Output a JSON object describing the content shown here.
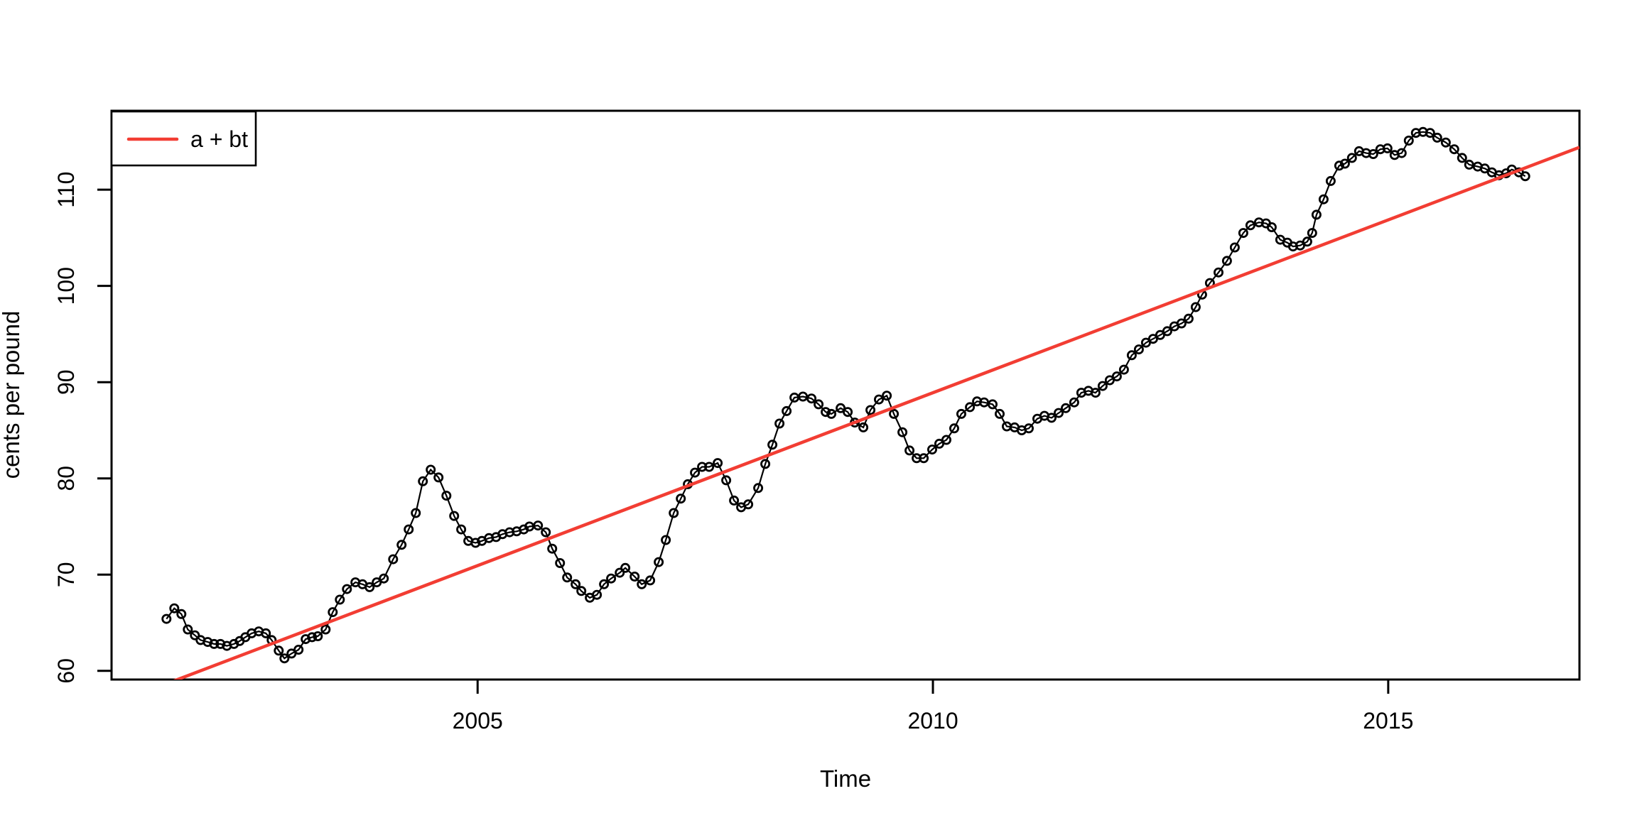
{
  "figure": {
    "background": "#ffffff",
    "frame_color": "#000000"
  },
  "chart_data": {
    "type": "line",
    "title": "",
    "xlabel": "Time",
    "ylabel": "cents per pound",
    "xlim": [
      2000.98,
      2017.1
    ],
    "ylim": [
      59.1,
      118.2
    ],
    "xticks": [
      2005,
      2010,
      2015
    ],
    "yticks": [
      60,
      70,
      80,
      90,
      100,
      110
    ],
    "grid": false,
    "legend": {
      "position": "topleft",
      "entries": [
        {
          "label": "a + bt",
          "color": "#f23d33"
        }
      ]
    },
    "trend": {
      "label": "a + bt",
      "slope": 3.592,
      "intercept": -7131.02,
      "color": "#f23d33"
    },
    "series": [
      {
        "name": "cents per pound",
        "color": "#000000",
        "marker": "open-circle",
        "points": [
          [
            2001.583,
            65.4
          ],
          [
            2001.669,
            66.5
          ],
          [
            2001.747,
            65.9
          ],
          [
            2001.817,
            64.3
          ],
          [
            2001.895,
            63.7
          ],
          [
            2001.958,
            63.2
          ],
          [
            2002.036,
            63.0
          ],
          [
            2002.106,
            62.8
          ],
          [
            2002.176,
            62.8
          ],
          [
            2002.246,
            62.6
          ],
          [
            2002.324,
            62.8
          ],
          [
            2002.387,
            63.1
          ],
          [
            2002.449,
            63.5
          ],
          [
            2002.519,
            63.9
          ],
          [
            2002.597,
            64.1
          ],
          [
            2002.675,
            63.9
          ],
          [
            2002.738,
            63.2
          ],
          [
            2002.816,
            62.1
          ],
          [
            2002.878,
            61.3
          ],
          [
            2002.956,
            61.8
          ],
          [
            2003.034,
            62.2
          ],
          [
            2003.112,
            63.3
          ],
          [
            2003.182,
            63.5
          ],
          [
            2003.245,
            63.6
          ],
          [
            2003.331,
            64.3
          ],
          [
            2003.409,
            66.1
          ],
          [
            2003.487,
            67.4
          ],
          [
            2003.565,
            68.5
          ],
          [
            2003.658,
            69.2
          ],
          [
            2003.736,
            69.0
          ],
          [
            2003.814,
            68.7
          ],
          [
            2003.892,
            69.2
          ],
          [
            2003.97,
            69.6
          ],
          [
            2004.072,
            71.6
          ],
          [
            2004.165,
            73.1
          ],
          [
            2004.243,
            74.7
          ],
          [
            2004.321,
            76.4
          ],
          [
            2004.399,
            79.7
          ],
          [
            2004.485,
            80.9
          ],
          [
            2004.571,
            80.1
          ],
          [
            2004.657,
            78.2
          ],
          [
            2004.742,
            76.1
          ],
          [
            2004.82,
            74.7
          ],
          [
            2004.898,
            73.5
          ],
          [
            2004.977,
            73.3
          ],
          [
            2005.047,
            73.5
          ],
          [
            2005.125,
            73.8
          ],
          [
            2005.203,
            73.9
          ],
          [
            2005.273,
            74.2
          ],
          [
            2005.351,
            74.4
          ],
          [
            2005.429,
            74.5
          ],
          [
            2005.507,
            74.7
          ],
          [
            2005.569,
            75.0
          ],
          [
            2005.663,
            75.1
          ],
          [
            2005.749,
            74.4
          ],
          [
            2005.819,
            72.7
          ],
          [
            2005.905,
            71.2
          ],
          [
            2005.983,
            69.7
          ],
          [
            2006.076,
            69.0
          ],
          [
            2006.139,
            68.3
          ],
          [
            2006.232,
            67.6
          ],
          [
            2006.31,
            67.9
          ],
          [
            2006.388,
            69.0
          ],
          [
            2006.466,
            69.6
          ],
          [
            2006.56,
            70.2
          ],
          [
            2006.622,
            70.7
          ],
          [
            2006.724,
            69.8
          ],
          [
            2006.802,
            69.0
          ],
          [
            2006.895,
            69.4
          ],
          [
            2006.989,
            71.3
          ],
          [
            2007.067,
            73.6
          ],
          [
            2007.153,
            76.4
          ],
          [
            2007.231,
            77.9
          ],
          [
            2007.309,
            79.4
          ],
          [
            2007.387,
            80.6
          ],
          [
            2007.465,
            81.2
          ],
          [
            2007.543,
            81.2
          ],
          [
            2007.636,
            81.6
          ],
          [
            2007.73,
            79.8
          ],
          [
            2007.816,
            77.7
          ],
          [
            2007.894,
            77.0
          ],
          [
            2007.972,
            77.3
          ],
          [
            2008.081,
            79.0
          ],
          [
            2008.159,
            81.5
          ],
          [
            2008.237,
            83.5
          ],
          [
            2008.315,
            85.7
          ],
          [
            2008.393,
            87.0
          ],
          [
            2008.479,
            88.4
          ],
          [
            2008.573,
            88.5
          ],
          [
            2008.666,
            88.3
          ],
          [
            2008.744,
            87.7
          ],
          [
            2008.822,
            86.9
          ],
          [
            2008.885,
            86.7
          ],
          [
            2008.986,
            87.3
          ],
          [
            2009.064,
            86.9
          ],
          [
            2009.142,
            85.8
          ],
          [
            2009.236,
            85.3
          ],
          [
            2009.314,
            87.1
          ],
          [
            2009.407,
            88.2
          ],
          [
            2009.493,
            88.6
          ],
          [
            2009.571,
            86.7
          ],
          [
            2009.665,
            84.8
          ],
          [
            2009.743,
            82.9
          ],
          [
            2009.821,
            82.1
          ],
          [
            2009.899,
            82.1
          ],
          [
            2009.992,
            83.0
          ],
          [
            2010.07,
            83.6
          ],
          [
            2010.148,
            84.0
          ],
          [
            2010.234,
            85.2
          ],
          [
            2010.312,
            86.7
          ],
          [
            2010.406,
            87.4
          ],
          [
            2010.484,
            88.0
          ],
          [
            2010.562,
            87.9
          ],
          [
            2010.655,
            87.7
          ],
          [
            2010.733,
            86.7
          ],
          [
            2010.811,
            85.4
          ],
          [
            2010.897,
            85.3
          ],
          [
            2010.975,
            85.0
          ],
          [
            2011.053,
            85.2
          ],
          [
            2011.147,
            86.2
          ],
          [
            2011.225,
            86.5
          ],
          [
            2011.303,
            86.3
          ],
          [
            2011.381,
            86.8
          ],
          [
            2011.459,
            87.3
          ],
          [
            2011.552,
            87.9
          ],
          [
            2011.63,
            88.9
          ],
          [
            2011.708,
            89.1
          ],
          [
            2011.786,
            88.9
          ],
          [
            2011.864,
            89.6
          ],
          [
            2011.942,
            90.2
          ],
          [
            2012.02,
            90.6
          ],
          [
            2012.098,
            91.3
          ],
          [
            2012.184,
            92.8
          ],
          [
            2012.262,
            93.4
          ],
          [
            2012.34,
            94.1
          ],
          [
            2012.418,
            94.5
          ],
          [
            2012.496,
            94.9
          ],
          [
            2012.574,
            95.3
          ],
          [
            2012.652,
            95.8
          ],
          [
            2012.73,
            96.1
          ],
          [
            2012.808,
            96.6
          ],
          [
            2012.886,
            97.8
          ],
          [
            2012.956,
            99.1
          ],
          [
            2013.042,
            100.3
          ],
          [
            2013.136,
            101.4
          ],
          [
            2013.229,
            102.6
          ],
          [
            2013.315,
            104.0
          ],
          [
            2013.409,
            105.5
          ],
          [
            2013.487,
            106.3
          ],
          [
            2013.58,
            106.6
          ],
          [
            2013.658,
            106.5
          ],
          [
            2013.721,
            106.1
          ],
          [
            2013.814,
            104.8
          ],
          [
            2013.892,
            104.5
          ],
          [
            2013.955,
            104.1
          ],
          [
            2014.033,
            104.2
          ],
          [
            2014.111,
            104.6
          ],
          [
            2014.165,
            105.5
          ],
          [
            2014.212,
            107.4
          ],
          [
            2014.29,
            109.0
          ],
          [
            2014.368,
            110.9
          ],
          [
            2014.462,
            112.5
          ],
          [
            2014.524,
            112.7
          ],
          [
            2014.602,
            113.3
          ],
          [
            2014.68,
            114.0
          ],
          [
            2014.758,
            113.8
          ],
          [
            2014.836,
            113.7
          ],
          [
            2014.914,
            114.2
          ],
          [
            2014.992,
            114.3
          ],
          [
            2015.07,
            113.6
          ],
          [
            2015.148,
            113.8
          ],
          [
            2015.226,
            115.1
          ],
          [
            2015.304,
            115.9
          ],
          [
            2015.382,
            116.0
          ],
          [
            2015.46,
            115.9
          ],
          [
            2015.538,
            115.4
          ],
          [
            2015.632,
            114.9
          ],
          [
            2015.725,
            114.2
          ],
          [
            2015.811,
            113.3
          ],
          [
            2015.889,
            112.6
          ],
          [
            2015.983,
            112.4
          ],
          [
            2016.061,
            112.2
          ],
          [
            2016.139,
            111.8
          ],
          [
            2016.217,
            111.5
          ],
          [
            2016.295,
            111.7
          ],
          [
            2016.357,
            112.1
          ],
          [
            2016.435,
            111.8
          ],
          [
            2016.505,
            111.4
          ]
        ]
      }
    ]
  }
}
